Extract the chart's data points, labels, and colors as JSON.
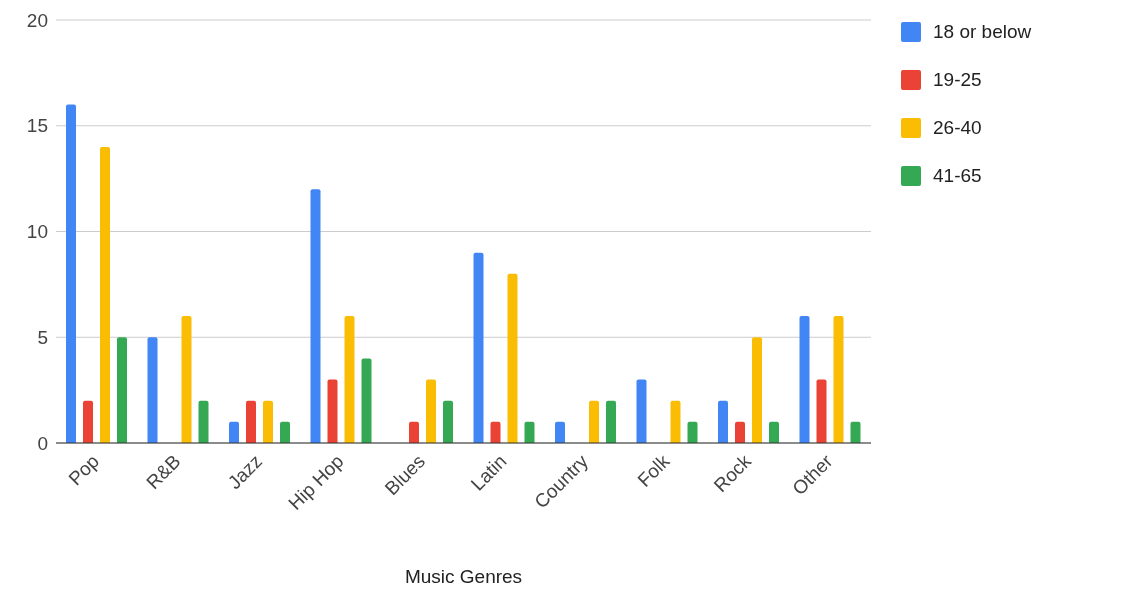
{
  "chart_data": {
    "type": "bar",
    "xlabel": "Music Genres",
    "categories": [
      "Pop",
      "R&B",
      "Jazz",
      "Hip Hop",
      "Blues",
      "Latin",
      "Country",
      "Folk",
      "Rock",
      "Other"
    ],
    "series": [
      {
        "name": "18 or below",
        "color": "#4285f4",
        "values": [
          16,
          5,
          1,
          12,
          0,
          9,
          1,
          3,
          2,
          6
        ]
      },
      {
        "name": "19-25",
        "color": "#ea4335",
        "values": [
          2,
          0,
          2,
          3,
          1,
          1,
          0,
          0,
          1,
          3
        ]
      },
      {
        "name": "26-40",
        "color": "#fbbc04",
        "values": [
          14,
          6,
          2,
          6,
          3,
          8,
          2,
          2,
          5,
          6
        ]
      },
      {
        "name": "41-65",
        "color": "#34a853",
        "values": [
          5,
          2,
          1,
          4,
          2,
          1,
          2,
          1,
          1,
          1
        ]
      }
    ],
    "ylim": [
      0,
      20
    ],
    "yticks": [
      0,
      5,
      10,
      15,
      20
    ],
    "grid": "y",
    "legend": "top right"
  }
}
